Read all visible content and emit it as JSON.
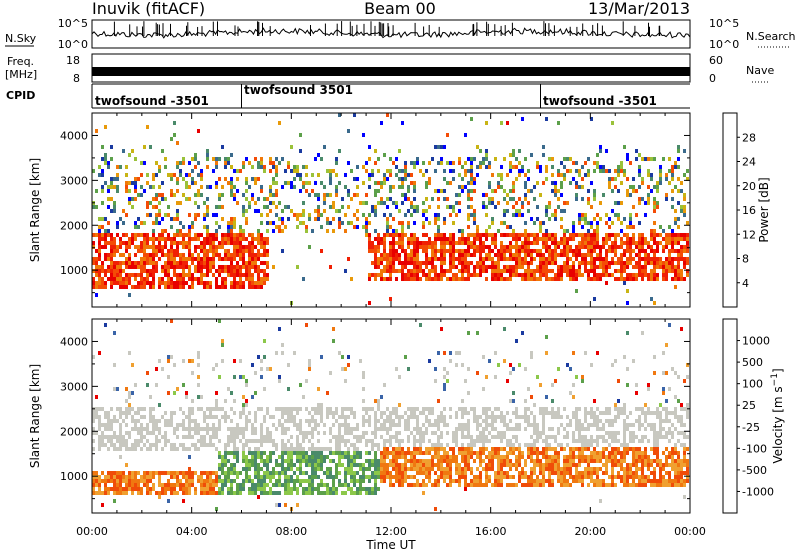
{
  "header": {
    "station": "Inuvik (fitACF)",
    "beam": "Beam 00",
    "date": "13/Mar/2013"
  },
  "panels": {
    "nsky": {
      "label": "N.Sky",
      "tick_labels": [
        "10^5",
        "10^0"
      ],
      "right_label": "N.Search",
      "right_tick_labels": [
        "10^5",
        "10^0"
      ]
    },
    "freq": {
      "label_line1": "Freq.",
      "label_line2": "[MHz]",
      "tick_labels": [
        "18",
        "8"
      ],
      "right_label": "Nave",
      "right_tick_labels": [
        "60",
        "0"
      ]
    },
    "cpid": {
      "label": "CPID",
      "programs": [
        {
          "name": "twofsound -3501",
          "start_hour": 0
        },
        {
          "name": "twofsound 3501",
          "start_hour": 6
        },
        {
          "name": "twofsound -3501",
          "start_hour": 18
        }
      ]
    }
  },
  "chart_data": [
    {
      "type": "heatmap",
      "quantity": "Power",
      "ylabel": "Slant Range [km]",
      "xlabel": "Time UT",
      "xlim": [
        0,
        24
      ],
      "ylim": [
        180,
        4500
      ],
      "x_ticks": [
        "00:00",
        "04:00",
        "08:00",
        "12:00",
        "16:00",
        "20:00",
        "00:00"
      ],
      "y_ticks": [
        1000,
        2000,
        3000,
        4000
      ],
      "colorbar": {
        "label": "Power [dB]",
        "tick_labels": [
          "28",
          "24",
          "20",
          "16",
          "12",
          "8",
          "4"
        ],
        "colors": [
          "#0000ff",
          "#1a3aa0",
          "#3a6a8c",
          "#4a8a6a",
          "#5ca04a",
          "#9ac23a",
          "#c8b414",
          "#e89a0a",
          "#f07808",
          "#f44c06",
          "#f02004",
          "#e80000"
        ]
      },
      "features": [
        {
          "description": "strong echo band",
          "time_start": 0,
          "time_end": 7,
          "range_start": 500,
          "range_end": 1800
        },
        {
          "description": "strong echo band",
          "time_start": 11,
          "time_end": 24,
          "range_start": 700,
          "range_end": 1800
        },
        {
          "description": "scattered echoes",
          "time_start": 0,
          "time_end": 24,
          "range_start": 1800,
          "range_end": 3500
        }
      ]
    },
    {
      "type": "heatmap",
      "quantity": "Velocity",
      "ylabel": "Slant Range [km]",
      "xlabel": "Time UT",
      "xlim": [
        0,
        24
      ],
      "ylim": [
        180,
        4500
      ],
      "x_ticks": [
        "00:00",
        "04:00",
        "08:00",
        "12:00",
        "16:00",
        "20:00",
        "00:00"
      ],
      "y_ticks": [
        1000,
        2000,
        3000,
        4000
      ],
      "colorbar": {
        "label": "Velocity [m s-1]",
        "tick_labels": [
          "1000",
          "500",
          "100",
          "25",
          "-25",
          "-100",
          "-500",
          "-1000"
        ],
        "colors": [
          "#1a3aa0",
          "#3a64a8",
          "#4a8a6a",
          "#5ca04a",
          "#8cc84a",
          "#c8c8c0",
          "#f0a030",
          "#f07810",
          "#f04c08",
          "#e80000"
        ]
      },
      "features": [
        {
          "description": "orange negative velocities",
          "time_start": 0,
          "time_end": 5,
          "range_start": 500,
          "range_end": 1100
        },
        {
          "description": "green positive velocities",
          "time_start": 5,
          "time_end": 11.5,
          "range_start": 500,
          "range_end": 1500
        },
        {
          "description": "orange negative velocities",
          "time_start": 11.5,
          "time_end": 24,
          "range_start": 700,
          "range_end": 1600
        },
        {
          "description": "grey near-zero velocities",
          "time_start": 0,
          "time_end": 24,
          "range_start": 1500,
          "range_end": 2500
        }
      ]
    }
  ]
}
